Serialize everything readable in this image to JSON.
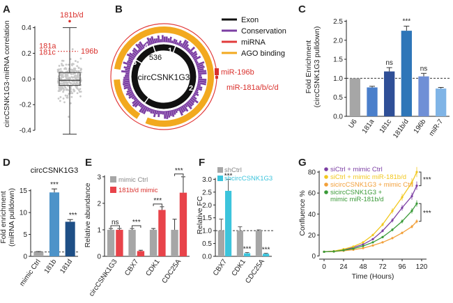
{
  "panels": {
    "A": {
      "label": "A"
    },
    "B": {
      "label": "B"
    },
    "C": {
      "label": "C"
    },
    "D": {
      "label": "D"
    },
    "E": {
      "label": "E"
    },
    "F": {
      "label": "F"
    },
    "G": {
      "label": "G"
    }
  },
  "colors": {
    "gray": "#a6a6a6",
    "red": "#e8434a",
    "purple": "#7c3fa3",
    "orange": "#f2a91f",
    "cyan": "#3cc4dc",
    "green": "#3a9a38",
    "exon": "#111111"
  },
  "chart_data": [
    {
      "id": "A",
      "type": "box",
      "ylabel": "circCSNK1G3-miRNA correlation",
      "yticks": [
        -0.4,
        -0.2,
        0.0,
        0.2,
        0.4
      ],
      "ylim": [
        -0.47,
        0.55
      ],
      "box": {
        "q1": -0.05,
        "median": -0.01,
        "q3": 0.05,
        "whisker_low": -0.43,
        "whisker_high": 0.4
      },
      "annotations": [
        {
          "text": "181b/d",
          "y": 0.5
        },
        {
          "text": "181a",
          "y": 0.26
        },
        {
          "text": "181c",
          "y": 0.21
        },
        {
          "text": "196b",
          "y": 0.22
        }
      ]
    },
    {
      "id": "B",
      "type": "circos",
      "center_label": "circCSNK1G3",
      "exon_labels": [
        "536",
        "4",
        "3",
        "1",
        "2"
      ],
      "legend": [
        "Exon",
        "Conservation",
        "miRNA",
        "AGO binding"
      ],
      "mirna_labels": [
        "miR-196b",
        "miR-181a/b/c/d"
      ]
    },
    {
      "id": "C",
      "type": "bar",
      "ylabel": "Fold Enrichment\n(circCSNK1G3 pulldown)",
      "categories": [
        "U6",
        "181a",
        "181c",
        "181b/d",
        "196b",
        "miR-7"
      ],
      "values": [
        1.0,
        0.76,
        1.18,
        2.25,
        1.05,
        0.73
      ],
      "errors": [
        0.0,
        0.03,
        0.1,
        0.12,
        0.08,
        0.03
      ],
      "significance": [
        "",
        "",
        "ns",
        "***",
        "ns",
        ""
      ],
      "yticks": [
        0.0,
        0.5,
        1.0,
        1.5,
        2.0,
        2.5
      ],
      "ylim": [
        0,
        2.6
      ],
      "reference_line": 1.0
    },
    {
      "id": "D",
      "type": "bar",
      "title": "circCSNK1G3",
      "ylabel": "Fold enrichment\n(miRNA pulldown)",
      "categories": [
        "mimic Ctrl",
        "181b",
        "181d"
      ],
      "values": [
        1.0,
        14.6,
        7.9
      ],
      "errors": [
        0.1,
        0.8,
        0.5
      ],
      "significance": [
        "",
        "***",
        "***"
      ],
      "yticks": [
        0,
        5,
        10,
        15
      ],
      "ylim": [
        0,
        17.5
      ],
      "reference_line": 1.0
    },
    {
      "id": "E",
      "type": "bar",
      "ylabel": "Relative abundance",
      "categories": [
        "circCSNK1G3",
        "CBX7",
        "CDK1",
        "CDC25A"
      ],
      "series": [
        {
          "name": "mimic Ctrl",
          "values": [
            1.0,
            1.0,
            1.0,
            1.0
          ],
          "errors": [
            0.05,
            0.05,
            0.05,
            0.4
          ]
        },
        {
          "name": "181b/d mimic",
          "values": [
            1.0,
            0.2,
            1.75,
            2.4
          ],
          "errors": [
            0.05,
            0.03,
            0.12,
            0.6
          ]
        }
      ],
      "significance": [
        "ns",
        "***",
        "***",
        "***"
      ],
      "yticks": [
        0,
        1,
        2,
        3
      ],
      "ylim": [
        0,
        3.1
      ]
    },
    {
      "id": "F",
      "type": "bar",
      "ylabel": "Relative FC",
      "categories": [
        "CBX7",
        "CDK1",
        "CDC25A"
      ],
      "series": [
        {
          "name": "shCtrl",
          "values": [
            1.0,
            1.0,
            1.0
          ],
          "errors": [
            0.45,
            0.15,
            0.03
          ]
        },
        {
          "name": "shcircCSNK1G3",
          "values": [
            2.55,
            0.12,
            0.1
          ],
          "errors": [
            0.45,
            0.03,
            0.02
          ]
        }
      ],
      "significance": [
        "***",
        "***",
        "***"
      ],
      "yticks": [
        0.0,
        0.5,
        1.0,
        1.5,
        2.0,
        2.5,
        3.0
      ],
      "ylim": [
        0,
        3.2
      ],
      "reference_line": 1.0
    },
    {
      "id": "G",
      "type": "line",
      "xlabel": "Time (Hours)",
      "ylabel": "Confluence %",
      "x": [
        0,
        12,
        24,
        36,
        48,
        60,
        72,
        84,
        96,
        108,
        114
      ],
      "xticks": [
        0,
        24,
        48,
        72,
        96,
        120
      ],
      "yticks": [
        0,
        20,
        40,
        60,
        80
      ],
      "xlim": [
        -6,
        126
      ],
      "ylim": [
        -3,
        86
      ],
      "series": [
        {
          "name": "siCtrl + mimic Ctrl",
          "color": "#7c3fa3",
          "values": [
            4,
            4.5,
            6,
            8,
            11,
            16,
            24,
            34,
            46,
            57,
            67
          ]
        },
        {
          "name": "siCtrl + mimic miR-181b/d",
          "color": "#f2c81f",
          "values": [
            4,
            4.6,
            6.5,
            9,
            13,
            20,
            30,
            43,
            56,
            70,
            80
          ]
        },
        {
          "name": "sicircCSNK1G3 + mimic Ctrl",
          "color": "#f2a03a",
          "values": [
            4,
            4.2,
            5,
            6,
            7.5,
            10,
            13,
            17,
            22,
            28,
            33
          ]
        },
        {
          "name": "sicircCSNK1G3 +\nmimic miR-181b/d",
          "color": "#3a9a38",
          "values": [
            4,
            4.3,
            5.5,
            7,
            9.5,
            13,
            18,
            25,
            33,
            43,
            50
          ]
        }
      ],
      "significance": [
        "***",
        "***"
      ]
    }
  ]
}
